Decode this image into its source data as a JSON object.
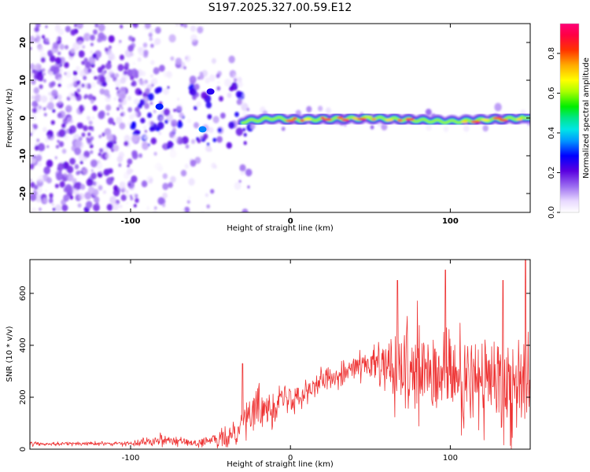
{
  "title": "S197.2025.327.00.59.E12",
  "chart_data": [
    {
      "type": "heatmap",
      "name": "spectrogram",
      "xlabel": "Height of straight line (km)",
      "ylabel": "Frequency (Hz)",
      "xlim": [
        -163,
        150
      ],
      "ylim": [
        -25,
        25
      ],
      "xticks": [
        -100,
        0,
        100
      ],
      "yticks": [
        -20,
        -10,
        0,
        10,
        20
      ],
      "colorbar": {
        "label": "Normalized spectral amplitude",
        "range": [
          0,
          0.95
        ],
        "ticks": [
          0.0,
          0.2,
          0.4,
          0.6,
          0.8
        ]
      },
      "ridge": {
        "x_start": -30,
        "x_end": 150,
        "frequency": -0.5,
        "description_points": [
          [
            -30,
            -1
          ],
          [
            -10,
            0
          ],
          [
            0,
            -0.5
          ],
          [
            50,
            0
          ],
          [
            100,
            -1
          ],
          [
            145,
            0
          ]
        ]
      },
      "features": [
        {
          "x": -82,
          "y": 3,
          "amplitude": 0.3
        },
        {
          "x": -55,
          "y": -3,
          "amplitude": 0.35
        },
        {
          "x": -50,
          "y": 7,
          "amplitude": 0.25
        }
      ]
    },
    {
      "type": "line",
      "name": "snr",
      "xlabel": "Height of straight line (km)",
      "ylabel": "SNR (10 * v/v)",
      "xlim": [
        -163,
        150
      ],
      "ylim": [
        0,
        730
      ],
      "xticks": [
        -100,
        0,
        100
      ],
      "yticks": [
        0,
        200,
        400,
        600
      ],
      "color": "#ee3333",
      "envelope": {
        "x": [
          -163,
          -100,
          -80,
          -60,
          -40,
          -25,
          -10,
          0,
          20,
          40,
          55,
          65,
          80,
          100,
          120,
          140,
          150
        ],
        "mean": [
          20,
          22,
          40,
          22,
          40,
          140,
          180,
          200,
          260,
          320,
          320,
          300,
          280,
          270,
          260,
          260,
          280
        ],
        "amp": [
          8,
          8,
          25,
          10,
          40,
          80,
          80,
          60,
          50,
          40,
          90,
          150,
          190,
          190,
          200,
          210,
          210
        ]
      },
      "peaks": [
        [
          -30,
          330
        ],
        [
          67,
          650
        ],
        [
          97,
          690
        ],
        [
          133,
          650
        ],
        [
          147,
          730
        ]
      ]
    }
  ]
}
